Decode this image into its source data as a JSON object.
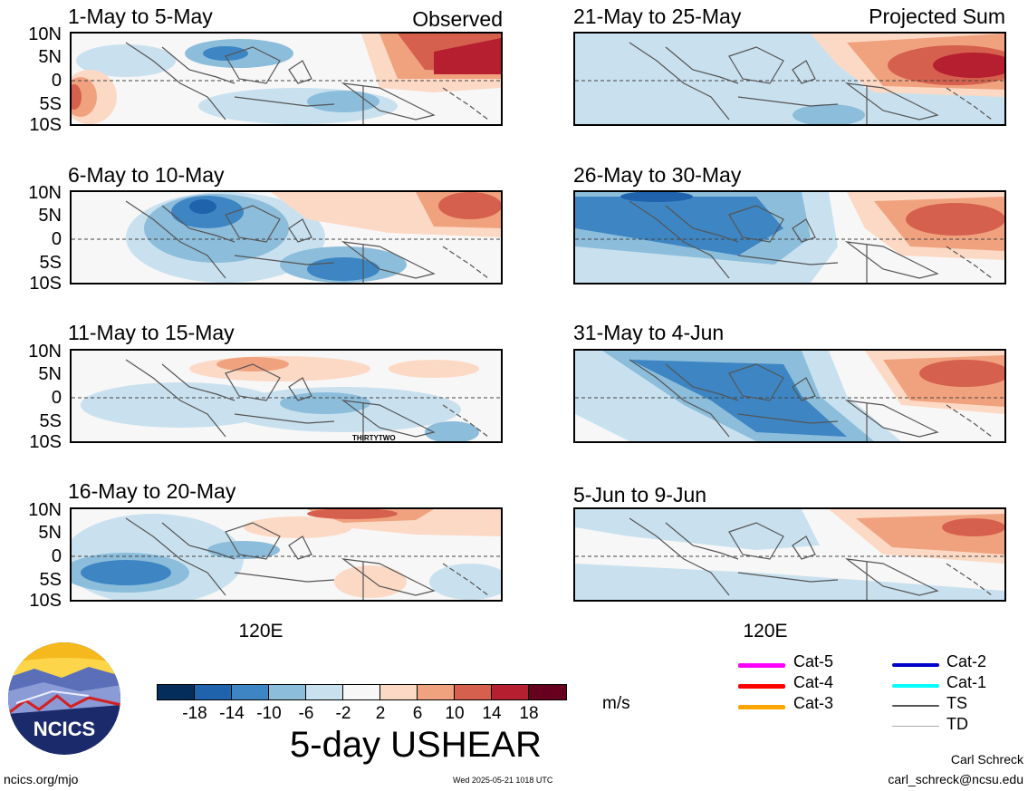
{
  "panels_left": [
    {
      "title": "1-May to 5-May",
      "tag": "Observed"
    },
    {
      "title": "6-May to 10-May",
      "tag": ""
    },
    {
      "title": "11-May to 15-May",
      "tag": "",
      "annotation": "THIRTYTWO"
    },
    {
      "title": "16-May to 20-May",
      "tag": ""
    }
  ],
  "panels_right": [
    {
      "title": "21-May to 25-May",
      "tag": "Projected Sum"
    },
    {
      "title": "26-May to 30-May",
      "tag": ""
    },
    {
      "title": "31-May to 4-Jun",
      "tag": ""
    },
    {
      "title": "5-Jun to 9-Jun",
      "tag": ""
    }
  ],
  "lat_labels": [
    "10N",
    "5N",
    "0",
    "5S",
    "10S"
  ],
  "lon_label": "120E",
  "colorbar": {
    "colors": [
      "#052d5c",
      "#1f63ad",
      "#3d86c3",
      "#8cbddb",
      "#c9e1ef",
      "#f7f7f7",
      "#fcd9c5",
      "#f0a27f",
      "#d5604d",
      "#b51f2f",
      "#67001f"
    ],
    "labels": [
      "-18",
      "-14",
      "-10",
      "-6",
      "-2",
      "2",
      "6",
      "10",
      "14",
      "18"
    ],
    "units": "m/s"
  },
  "main_title": "5-day USHEAR",
  "legend": [
    {
      "label": "Cat-5",
      "color": "#ff00ff"
    },
    {
      "label": "Cat-4",
      "color": "#ff0000"
    },
    {
      "label": "Cat-3",
      "color": "#ffa500"
    },
    {
      "label": "Cat-2",
      "color": "#0000cc"
    },
    {
      "label": "Cat-1",
      "color": "#00ffff"
    },
    {
      "label": "TS",
      "color": "#555555"
    },
    {
      "label": "TD",
      "color": "#aaaaaa"
    }
  ],
  "logo_text": "NCICS",
  "footer": {
    "url": "ncics.org/mjo",
    "timestamp": "Wed 2025-05-21 1018 UTC",
    "author": "Carl Schreck",
    "email": "carl_schreck@ncsu.edu"
  }
}
